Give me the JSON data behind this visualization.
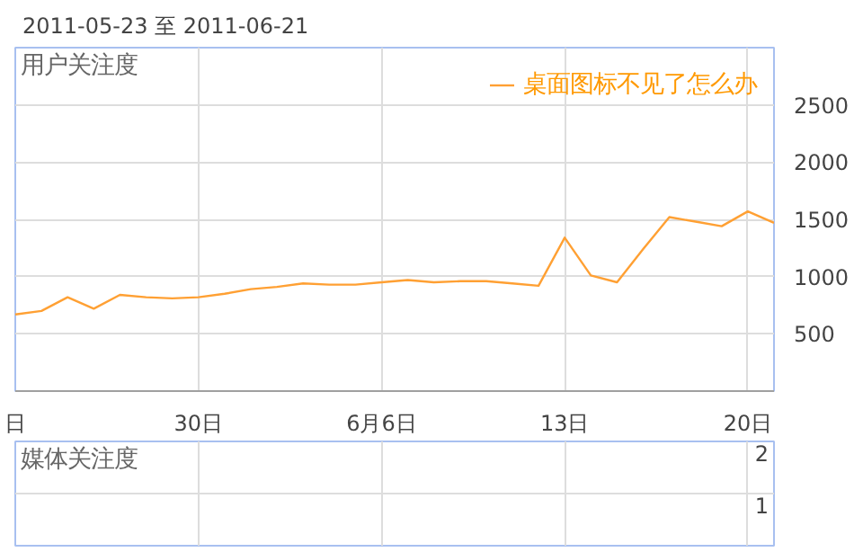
{
  "chart_data": [
    {
      "type": "line",
      "title": "用户关注度",
      "annotations": [
        "2011-05-23 至 2011-06-21"
      ],
      "x": [
        "2011-05-23",
        "2011-05-24",
        "2011-05-25",
        "2011-05-26",
        "2011-05-27",
        "2011-05-28",
        "2011-05-29",
        "2011-05-30",
        "2011-05-31",
        "2011-06-01",
        "2011-06-02",
        "2011-06-03",
        "2011-06-04",
        "2011-06-05",
        "2011-06-06",
        "2011-06-07",
        "2011-06-08",
        "2011-06-09",
        "2011-06-10",
        "2011-06-11",
        "2011-06-12",
        "2011-06-13",
        "2011-06-14",
        "2011-06-15",
        "2011-06-16",
        "2011-06-17",
        "2011-06-18",
        "2011-06-19",
        "2011-06-20",
        "2011-06-21"
      ],
      "series": [
        {
          "name": "桌面图标不见了怎么办",
          "color": "#ffa033",
          "values": [
            670,
            700,
            820,
            720,
            840,
            820,
            810,
            820,
            850,
            890,
            910,
            940,
            930,
            930,
            950,
            970,
            950,
            960,
            960,
            940,
            920,
            1340,
            1010,
            950,
            1240,
            1520,
            1480,
            1440,
            1570,
            1470
          ]
        }
      ],
      "xlim": [
        "2011-05-23",
        "2011-06-21"
      ],
      "xticks": [
        {
          "value": "2011-05-23",
          "label": "日"
        },
        {
          "value": "2011-05-30",
          "label": "30日"
        },
        {
          "value": "2011-06-06",
          "label": "6月6日"
        },
        {
          "value": "2011-06-13",
          "label": "13日"
        },
        {
          "value": "2011-06-20",
          "label": "20日"
        }
      ],
      "ylim": [
        0,
        3000
      ],
      "yticks": [
        500,
        1000,
        1500,
        2000,
        2500
      ],
      "grid": true,
      "legend": "top right"
    },
    {
      "type": "other",
      "title": "媒体关注度",
      "annotations": [
        "2",
        "1"
      ]
    }
  ]
}
